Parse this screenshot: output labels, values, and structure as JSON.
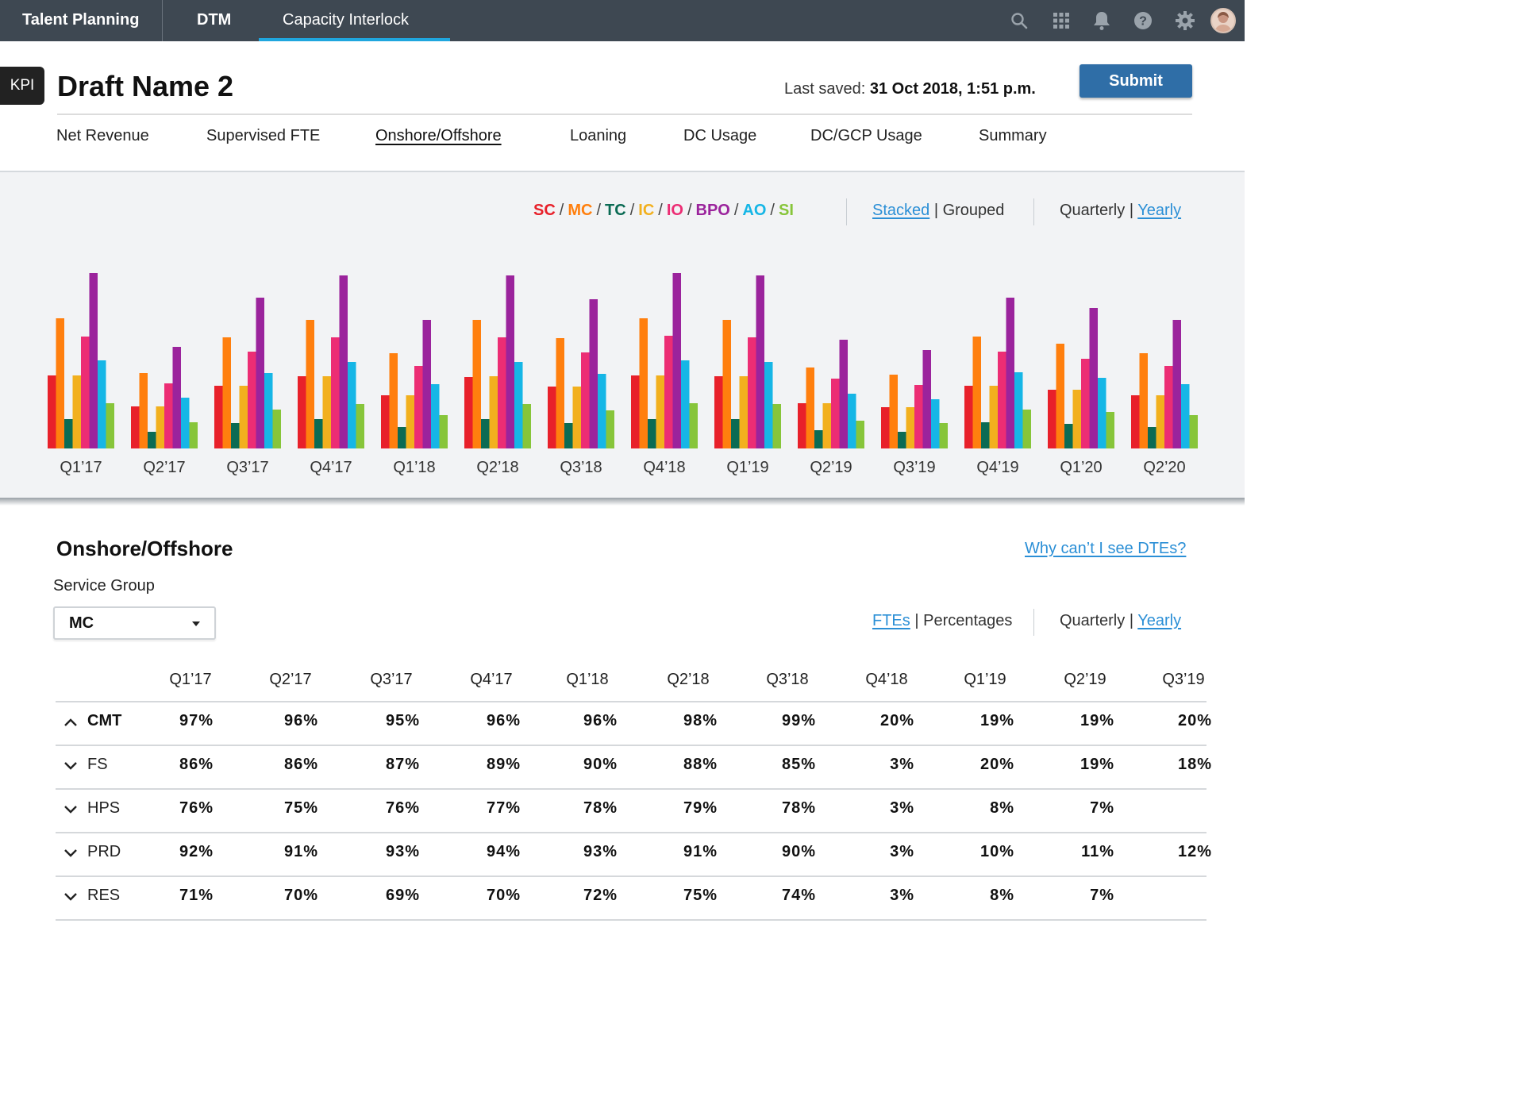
{
  "topbar": {
    "nav": [
      "Talent Planning",
      "DTM",
      "Capacity Interlock"
    ],
    "active_nav": "Capacity Interlock",
    "icons": [
      "search-icon",
      "apps-grid-icon",
      "bell-icon",
      "help-icon",
      "gear-icon",
      "user-avatar"
    ]
  },
  "header": {
    "badge": "KPI",
    "title": "Draft Name 2",
    "last_saved_label": "Last saved:",
    "last_saved_value": "31 Oct 2018, 1:51 p.m.",
    "submit_label": "Submit"
  },
  "kpi_tabs": [
    "Net Revenue",
    "Supervised FTE",
    "Onshore/Offshore",
    "Loaning",
    "DC Usage",
    "DC/GCP Usage",
    "Summary"
  ],
  "active_kpi_tab": "Onshore/Offshore",
  "chart_controls": {
    "series_legend": [
      {
        "label": "SC",
        "color": "#e8202a"
      },
      {
        "label": "MC",
        "color": "#ff7f0e"
      },
      {
        "label": "TC",
        "color": "#0b6b54"
      },
      {
        "label": "IC",
        "color": "#f2b01e"
      },
      {
        "label": "IO",
        "color": "#ec2d74"
      },
      {
        "label": "BPO",
        "color": "#9b239c"
      },
      {
        "label": "AO",
        "color": "#16b6e6"
      },
      {
        "label": "SI",
        "color": "#87c53a"
      }
    ],
    "stacked_label": "Stacked",
    "grouped_label": "Grouped",
    "quarterly_label": "Quarterly",
    "yearly_label": "Yearly",
    "separator": "|"
  },
  "chart_data": {
    "type": "bar",
    "categories": [
      "Q1’17",
      "Q2’17",
      "Q3’17",
      "Q4’17",
      "Q1’18",
      "Q2’18",
      "Q3’18",
      "Q4’18",
      "Q1’19",
      "Q2’19",
      "Q3’19",
      "Q4’19",
      "Q1’20",
      "Q2’20"
    ],
    "series": [
      {
        "name": "SC",
        "color": "#e8202a",
        "values": [
          92,
          53,
          79,
          91,
          67,
          90,
          78,
          92,
          91,
          57,
          52,
          79,
          74,
          67
        ]
      },
      {
        "name": "MC",
        "color": "#ff7f0e",
        "values": [
          164,
          95,
          140,
          162,
          120,
          162,
          139,
          164,
          162,
          102,
          93,
          141,
          132,
          120
        ]
      },
      {
        "name": "TC",
        "color": "#0b6b54",
        "values": [
          37,
          21,
          32,
          37,
          27,
          37,
          32,
          37,
          37,
          23,
          21,
          33,
          31,
          27
        ]
      },
      {
        "name": "IC",
        "color": "#f2b01e",
        "values": [
          92,
          53,
          79,
          91,
          67,
          91,
          78,
          92,
          91,
          57,
          52,
          79,
          74,
          67
        ]
      },
      {
        "name": "IO",
        "color": "#ec2d74",
        "values": [
          141,
          82,
          122,
          140,
          104,
          140,
          121,
          142,
          140,
          88,
          80,
          122,
          113,
          104
        ]
      },
      {
        "name": "BPO",
        "color": "#9b239c",
        "values": [
          221,
          128,
          190,
          218,
          162,
          218,
          188,
          221,
          218,
          137,
          124,
          190,
          177,
          162
        ]
      },
      {
        "name": "AO",
        "color": "#16b6e6",
        "values": [
          111,
          64,
          95,
          109,
          81,
          109,
          94,
          111,
          109,
          69,
          62,
          96,
          89,
          81
        ]
      },
      {
        "name": "SI",
        "color": "#87c53a",
        "values": [
          57,
          33,
          49,
          56,
          42,
          56,
          48,
          57,
          56,
          35,
          32,
          49,
          46,
          42
        ]
      }
    ],
    "xlabel": "",
    "ylabel": "",
    "ylim": [
      0,
      230
    ],
    "grid": false,
    "legend_position": "top-right"
  },
  "section": {
    "title": "Onshore/Offshore",
    "why_link": "Why can’t I see DTEs?",
    "service_group_label": "Service Group",
    "service_group_value": "MC",
    "ftes_label": "FTEs",
    "percentages_label": "Percentages",
    "quarterly_label": "Quarterly",
    "yearly_label": "Yearly",
    "separator": "|"
  },
  "table": {
    "columns": [
      "Q1’17",
      "Q2’17",
      "Q3’17",
      "Q4’17",
      "Q1’18",
      "Q2’18",
      "Q3’18",
      "Q4’18",
      "Q1’19",
      "Q2’19",
      "Q3’19"
    ],
    "rows": [
      {
        "label": "CMT",
        "expanded": true,
        "values": [
          "97%",
          "96%",
          "95%",
          "96%",
          "96%",
          "98%",
          "99%",
          "20%",
          "19%",
          "19%",
          "20%"
        ]
      },
      {
        "label": "FS",
        "expanded": false,
        "values": [
          "86%",
          "86%",
          "87%",
          "89%",
          "90%",
          "88%",
          "85%",
          "3%",
          "20%",
          "19%",
          "18%"
        ]
      },
      {
        "label": "HPS",
        "expanded": false,
        "values": [
          "76%",
          "75%",
          "76%",
          "77%",
          "78%",
          "79%",
          "78%",
          "3%",
          "8%",
          "7%",
          ""
        ]
      },
      {
        "label": "PRD",
        "expanded": false,
        "values": [
          "92%",
          "91%",
          "93%",
          "94%",
          "93%",
          "91%",
          "90%",
          "3%",
          "10%",
          "11%",
          "12%"
        ]
      },
      {
        "label": "RES",
        "expanded": false,
        "values": [
          "71%",
          "70%",
          "69%",
          "70%",
          "72%",
          "75%",
          "74%",
          "3%",
          "8%",
          "7%",
          ""
        ]
      }
    ]
  }
}
